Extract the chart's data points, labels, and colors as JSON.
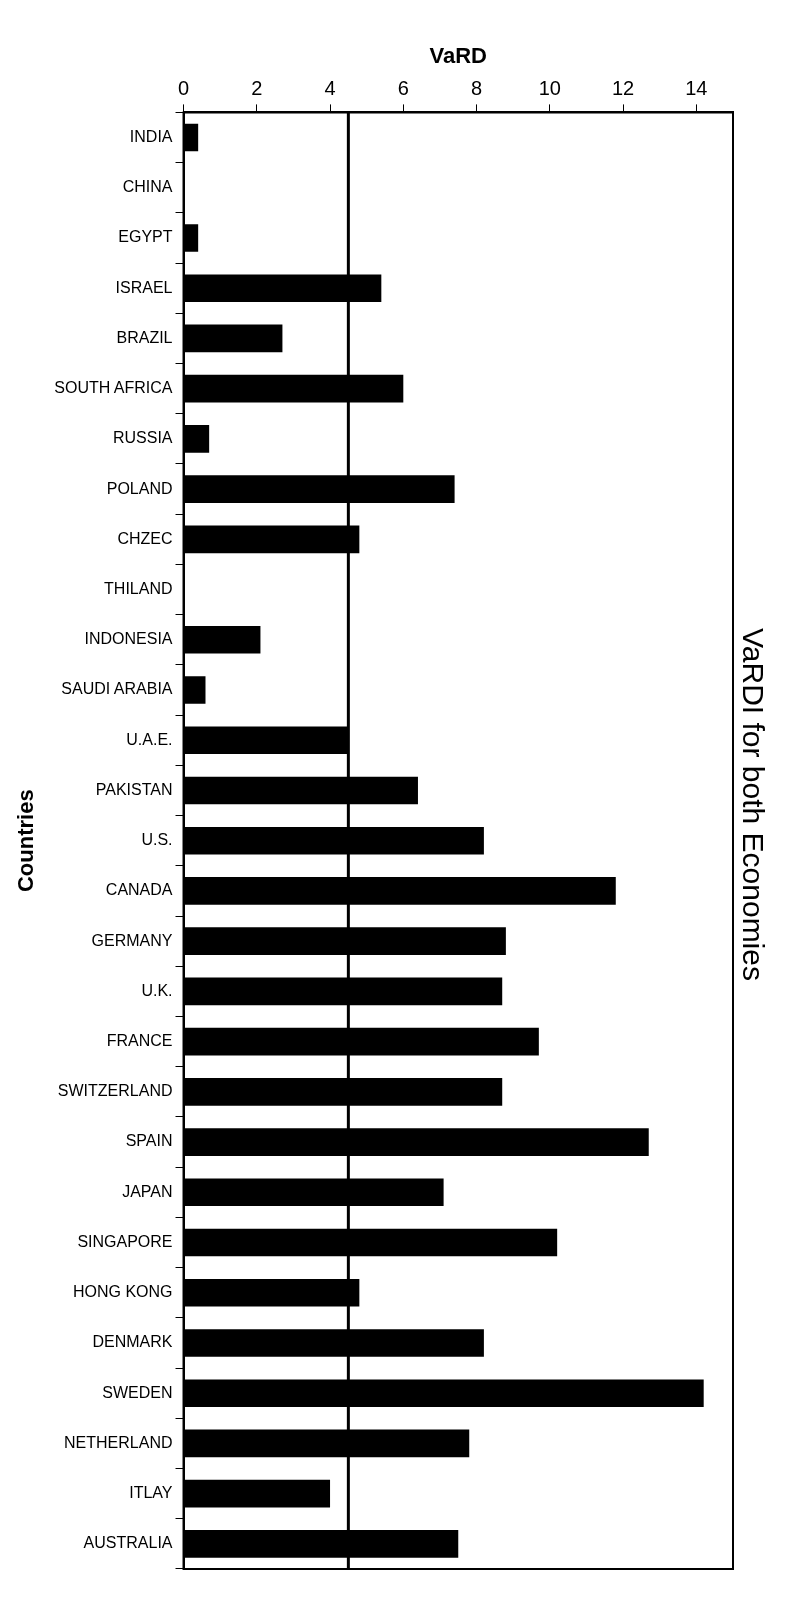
{
  "chart_data": {
    "type": "bar",
    "orientation": "horizontal",
    "title": "VaRDI for both Economies",
    "xlabel": "VaRD",
    "ylabel": "Countries",
    "categories": [
      "INDIA",
      "CHINA",
      "EGYPT",
      "ISRAEL",
      "BRAZIL",
      "SOUTH AFRICA",
      "RUSSIA",
      "POLAND",
      "CHZEC",
      "THILAND",
      "INDONESIA",
      "SAUDI ARABIA",
      "U.A.E.",
      "PAKISTAN",
      "U.S.",
      "CANADA",
      "GERMANY",
      "U.K.",
      "FRANCE",
      "SWITZERLAND",
      "SPAIN",
      "JAPAN",
      "SINGAPORE",
      "HONG KONG",
      "DENMARK",
      "SWEDEN",
      "NETHERLAND",
      "ITLAY",
      "AUSTRALIA"
    ],
    "values": [
      0.4,
      0,
      0.4,
      5.4,
      2.7,
      6.0,
      0.7,
      7.4,
      4.8,
      0,
      2.1,
      0.6,
      4.5,
      6.4,
      8.2,
      11.8,
      8.8,
      8.7,
      9.7,
      8.7,
      12.7,
      7.1,
      10.2,
      4.8,
      8.2,
      14.2,
      7.8,
      4.0,
      7.5
    ],
    "color": "#000000",
    "xlim": [
      0,
      15
    ],
    "xticks": [
      0,
      2,
      4,
      6,
      8,
      10,
      12,
      14
    ],
    "ref_lines": [
      {
        "axis": "x",
        "value": 4.5,
        "color": "#000000"
      }
    ],
    "grid": false,
    "legend": false
  }
}
